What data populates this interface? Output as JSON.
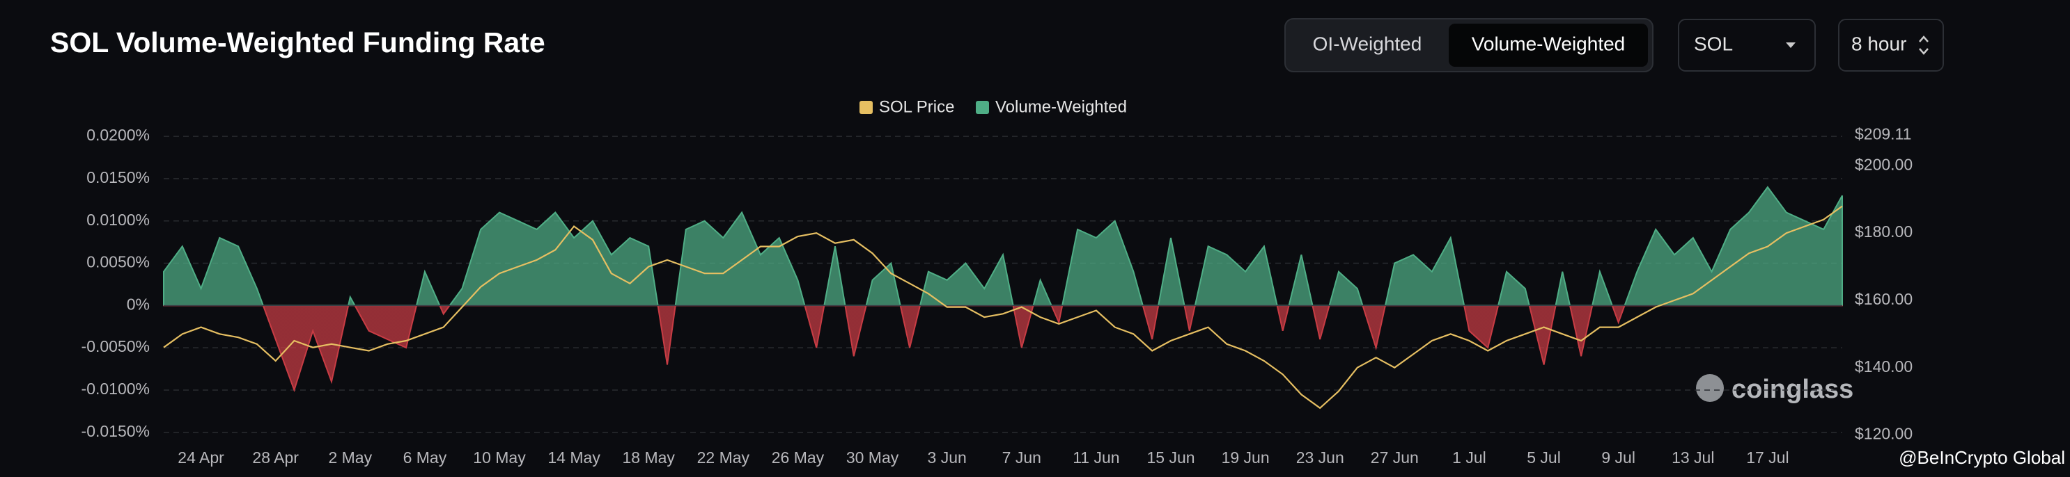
{
  "header": {
    "toggle": [
      "OI-Weighted",
      "Volume-Weighted"
    ],
    "coin": "SOL",
    "interval": "8 hour"
  },
  "watermark": "coinglass",
  "credit": "@BeInCrypto Global",
  "chart_data": {
    "type": "area-line",
    "title": "SOL Volume-Weighted Funding Rate",
    "categories": [
      null,
      null,
      "24 Apr",
      null,
      null,
      null,
      "28 Apr",
      null,
      null,
      null,
      "2 May",
      null,
      null,
      null,
      "6 May",
      null,
      null,
      null,
      "10 May",
      null,
      null,
      null,
      "14 May",
      null,
      null,
      null,
      "18 May",
      null,
      null,
      null,
      "22 May",
      null,
      null,
      null,
      "26 May",
      null,
      null,
      null,
      "30 May",
      null,
      null,
      null,
      "3 Jun",
      null,
      null,
      null,
      "7 Jun",
      null,
      null,
      null,
      "11 Jun",
      null,
      null,
      null,
      "15 Jun",
      null,
      null,
      null,
      "19 Jun",
      null,
      null,
      null,
      "23 Jun",
      null,
      null,
      null,
      "27 Jun",
      null,
      null,
      null,
      "1 Jul",
      null,
      null,
      null,
      "5 Jul",
      null,
      null,
      null,
      "9 Jul",
      null,
      null,
      null,
      "13 Jul",
      null,
      null,
      null,
      "17 Jul",
      null,
      null,
      null,
      null
    ],
    "series": [
      {
        "name": "SOL Price",
        "color": "#e6bf62",
        "axis": "y2",
        "values": [
          146,
          150,
          152,
          150,
          149,
          147,
          142,
          148,
          146,
          147,
          146,
          145,
          147,
          148,
          150,
          152,
          158,
          164,
          168,
          170,
          172,
          175,
          182,
          178,
          168,
          165,
          170,
          172,
          170,
          168,
          168,
          172,
          176,
          176,
          179,
          180,
          177,
          178,
          174,
          168,
          165,
          162,
          158,
          158,
          155,
          156,
          158,
          155,
          153,
          155,
          157,
          152,
          150,
          145,
          148,
          150,
          152,
          147,
          145,
          142,
          138,
          132,
          128,
          133,
          140,
          143,
          140,
          144,
          148,
          150,
          148,
          145,
          148,
          150,
          152,
          150,
          148,
          152,
          152,
          155,
          158,
          160,
          162,
          166,
          170,
          174,
          176,
          180,
          182,
          184,
          188
        ]
      },
      {
        "name": "Volume-Weighted",
        "color": "#4fae86",
        "negative_color": "#c83c44",
        "values": [
          0.004,
          0.007,
          0.002,
          0.008,
          0.007,
          0.002,
          -0.004,
          -0.01,
          -0.003,
          -0.009,
          0.001,
          -0.003,
          -0.004,
          -0.005,
          0.004,
          -0.001,
          0.002,
          0.009,
          0.011,
          0.01,
          0.009,
          0.011,
          0.008,
          0.01,
          0.006,
          0.008,
          0.007,
          -0.007,
          0.009,
          0.01,
          0.008,
          0.011,
          0.006,
          0.008,
          0.003,
          -0.005,
          0.007,
          -0.006,
          0.003,
          0.005,
          -0.005,
          0.004,
          0.003,
          0.005,
          0.002,
          0.006,
          -0.005,
          0.003,
          -0.002,
          0.009,
          0.008,
          0.01,
          0.004,
          -0.004,
          0.008,
          -0.003,
          0.007,
          0.006,
          0.004,
          0.007,
          -0.003,
          0.006,
          -0.004,
          0.004,
          0.002,
          -0.005,
          0.005,
          0.006,
          0.004,
          0.008,
          -0.003,
          -0.005,
          0.004,
          0.002,
          -0.007,
          0.004,
          -0.006,
          0.004,
          -0.002,
          0.004,
          0.009,
          0.006,
          0.008,
          0.004,
          0.009,
          0.011,
          0.014,
          0.011,
          0.01,
          0.009,
          0.013
        ]
      }
    ],
    "ylim": [
      -0.0165,
      0.0205
    ],
    "yticks": [
      {
        "value": -0.015,
        "label": "-0.0150%"
      },
      {
        "value": -0.01,
        "label": "-0.0100%"
      },
      {
        "value": -0.005,
        "label": "-0.0050%"
      },
      {
        "value": 0,
        "label": "0%"
      },
      {
        "value": 0.005,
        "label": "0.0050%"
      },
      {
        "value": 0.01,
        "label": "0.0100%"
      },
      {
        "value": 0.015,
        "label": "0.0150%"
      },
      {
        "value": 0.02,
        "label": "0.0200%"
      }
    ],
    "y2lim": [
      117,
      210
    ],
    "y2ticks": [
      {
        "value": 120,
        "label": "$120.00"
      },
      {
        "value": 140,
        "label": "$140.00"
      },
      {
        "value": 160,
        "label": "$160.00"
      },
      {
        "value": 180,
        "label": "$180.00"
      },
      {
        "value": 200,
        "label": "$200.00"
      },
      {
        "value": 209.11,
        "label": "$209.11"
      }
    ],
    "grid": true,
    "legend": "top"
  }
}
